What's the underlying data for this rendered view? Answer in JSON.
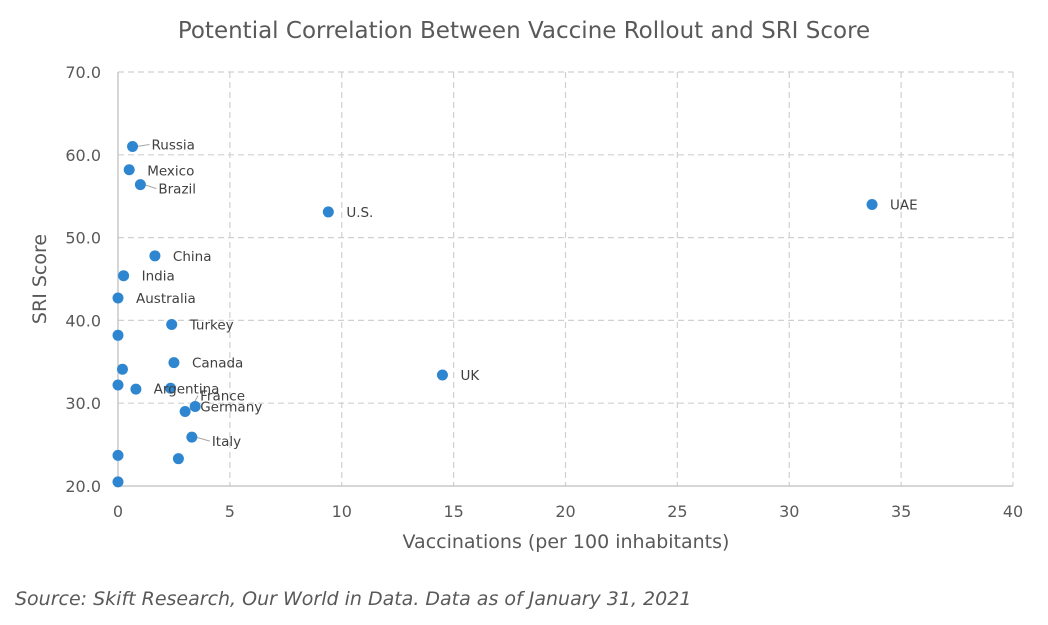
{
  "chart_data": {
    "type": "scatter",
    "title": "Potential Correlation Between Vaccine Rollout and SRI Score",
    "xlabel": "Vaccinations (per 100 inhabitants)",
    "ylabel": "SRI Score",
    "xlim": [
      0,
      40
    ],
    "ylim": [
      20,
      70
    ],
    "x_ticks": [
      "0",
      "5",
      "10",
      "15",
      "20",
      "25",
      "30",
      "35",
      "40"
    ],
    "y_ticks": [
      "20.0",
      "30.0",
      "40.0",
      "50.0",
      "60.0",
      "70.0"
    ],
    "x_tick_values": [
      0,
      5,
      10,
      15,
      20,
      25,
      30,
      35,
      40
    ],
    "y_tick_values": [
      20,
      30,
      40,
      50,
      60,
      70
    ],
    "grid": true,
    "marker_color": "#2E86D1",
    "points": [
      {
        "label": "Russia",
        "x": 0.65,
        "y": 61.0
      },
      {
        "label": "Mexico",
        "x": 0.5,
        "y": 58.2
      },
      {
        "label": "Brazil",
        "x": 1.0,
        "y": 56.4
      },
      {
        "label": "U.S.",
        "x": 9.4,
        "y": 53.1
      },
      {
        "label": "UAE",
        "x": 33.7,
        "y": 54.0
      },
      {
        "label": "China",
        "x": 1.65,
        "y": 47.8
      },
      {
        "label": "India",
        "x": 0.25,
        "y": 45.4
      },
      {
        "label": "Australia",
        "x": 0.0,
        "y": 42.7
      },
      {
        "label": "",
        "x": 0.0,
        "y": 38.2
      },
      {
        "label": "Turkey",
        "x": 2.4,
        "y": 39.5
      },
      {
        "label": "Canada",
        "x": 2.5,
        "y": 34.9
      },
      {
        "label": "",
        "x": 0.2,
        "y": 34.1
      },
      {
        "label": "",
        "x": 0.0,
        "y": 32.2
      },
      {
        "label": "",
        "x": 0.8,
        "y": 31.7
      },
      {
        "label": "Argentina",
        "x": 2.35,
        "y": 31.8
      },
      {
        "label": "France",
        "x": 3.0,
        "y": 29.0
      },
      {
        "label": "Germany",
        "x": 3.45,
        "y": 29.6
      },
      {
        "label": "UK",
        "x": 14.5,
        "y": 33.4
      },
      {
        "label": "Italy",
        "x": 3.3,
        "y": 25.9
      },
      {
        "label": "",
        "x": 0.0,
        "y": 23.7
      },
      {
        "label": "",
        "x": 2.7,
        "y": 23.3
      },
      {
        "label": "",
        "x": 0.0,
        "y": 20.5
      }
    ]
  },
  "source_note": "Source: Skift Research, Our World in Data. Data as of January 31, 2021"
}
